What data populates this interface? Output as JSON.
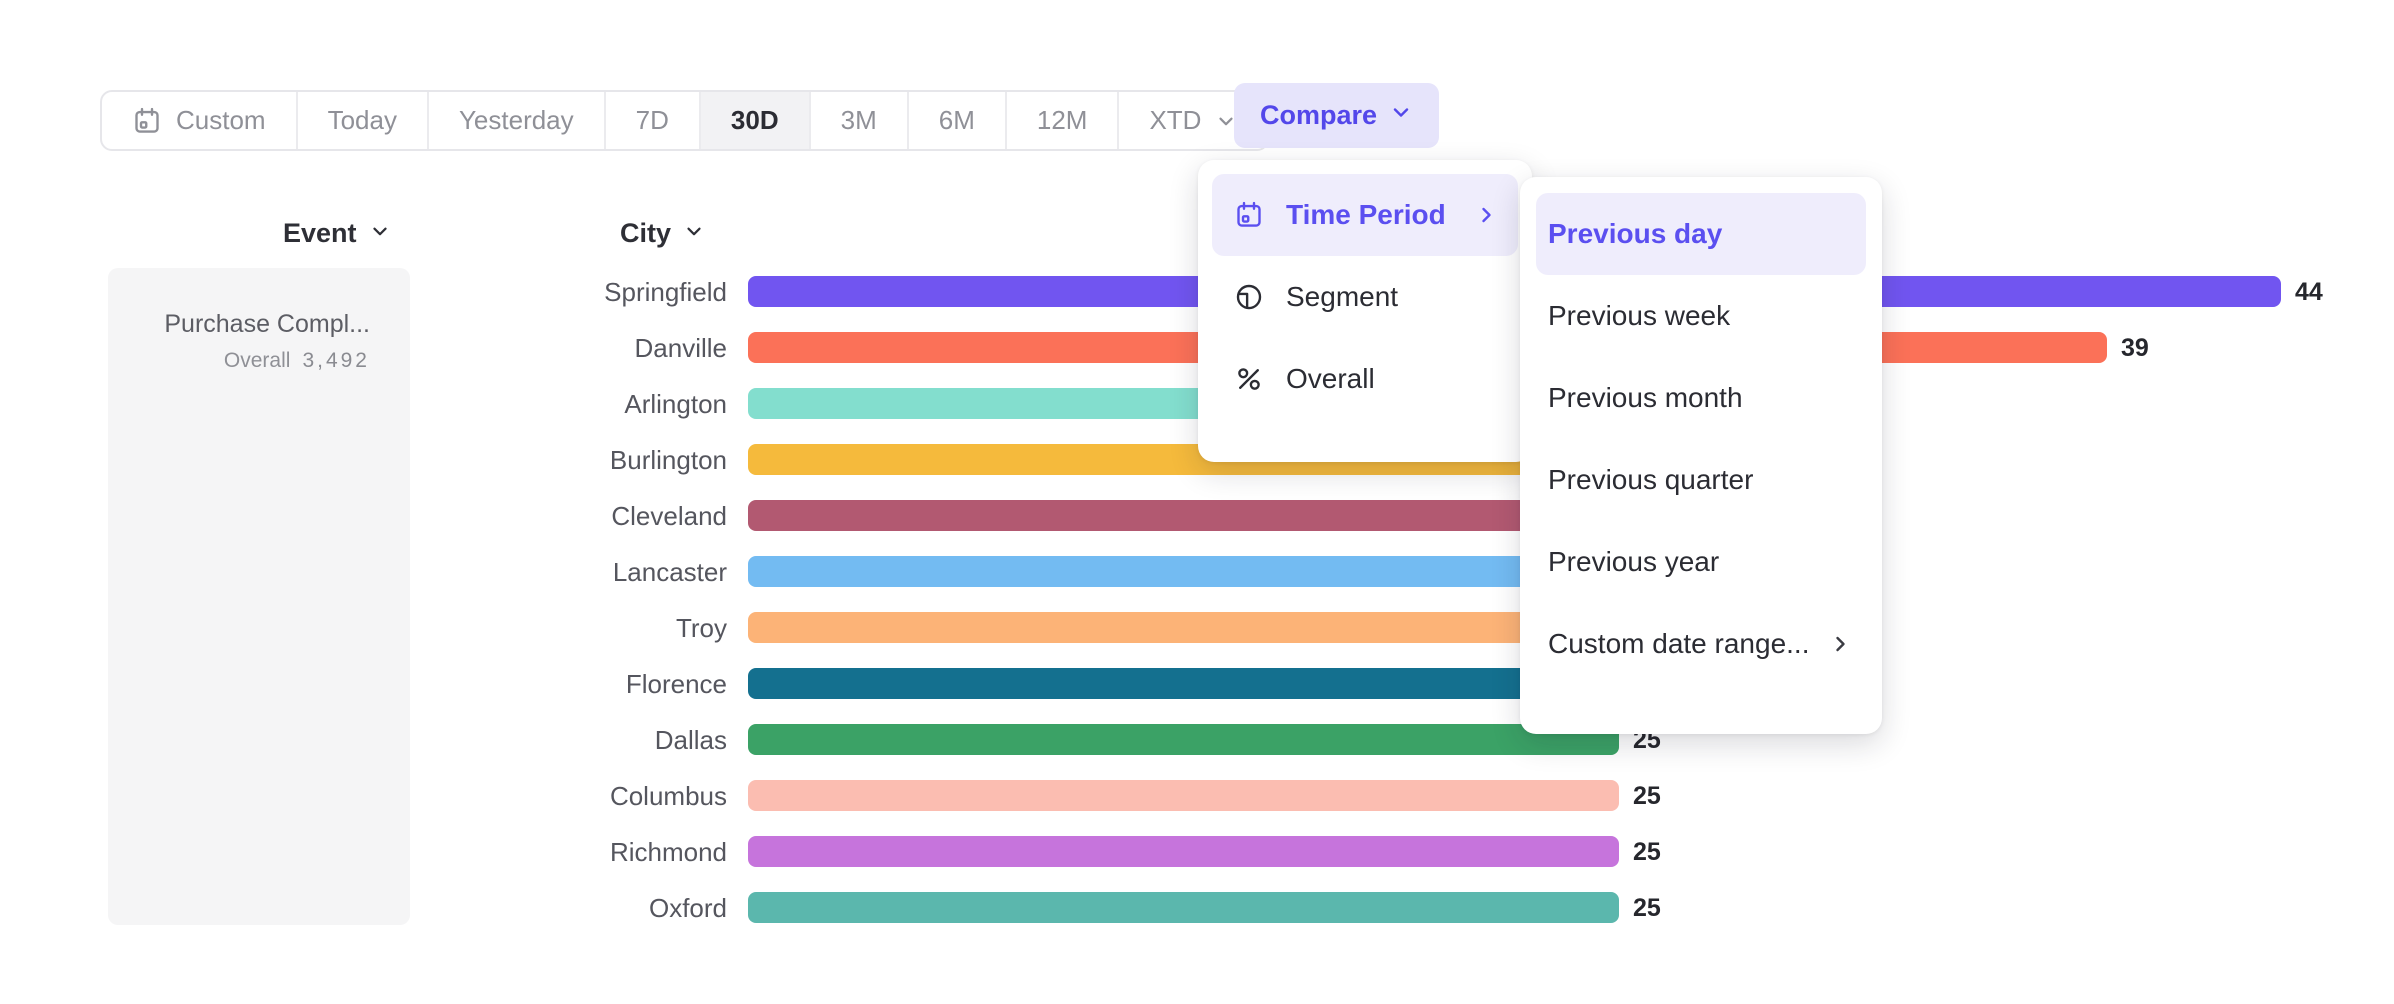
{
  "toolbar": {
    "items": [
      {
        "label": "Custom",
        "icon": "calendar",
        "selected": false,
        "chevron": false
      },
      {
        "label": "Today",
        "selected": false,
        "chevron": false
      },
      {
        "label": "Yesterday",
        "selected": false,
        "chevron": false
      },
      {
        "label": "7D",
        "selected": false,
        "chevron": false
      },
      {
        "label": "30D",
        "selected": true,
        "chevron": false
      },
      {
        "label": "3M",
        "selected": false,
        "chevron": false
      },
      {
        "label": "6M",
        "selected": false,
        "chevron": false
      },
      {
        "label": "12M",
        "selected": false,
        "chevron": false
      },
      {
        "label": "XTD",
        "selected": false,
        "chevron": true
      }
    ],
    "compare_label": "Compare"
  },
  "event_panel": {
    "header": "Event",
    "event_name": "Purchase Compl...",
    "overall_label": "Overall",
    "overall_value": "3,492"
  },
  "chart_data": {
    "type": "bar",
    "orientation": "horizontal",
    "group_header": "City",
    "categories": [
      "Springfield",
      "Danville",
      "Arlington",
      "Burlington",
      "Cleveland",
      "Lancaster",
      "Troy",
      "Florence",
      "Dallas",
      "Columbus",
      "Richmond",
      "Oxford"
    ],
    "rows": [
      {
        "city": "Springfield",
        "value": 44,
        "value_label": "44",
        "occluded": false,
        "value_estimate": 44,
        "color": "#7155F0"
      },
      {
        "city": "Danville",
        "value": 39,
        "value_label": "39",
        "occluded": false,
        "value_estimate": 39,
        "color": "#FB7158"
      },
      {
        "city": "Arlington",
        "value": null,
        "value_label": "",
        "occluded": true,
        "value_estimate": 31,
        "color": "#83DECE"
      },
      {
        "city": "Burlington",
        "value": null,
        "value_label": "",
        "occluded": true,
        "value_estimate": 30,
        "color": "#F5BA3C"
      },
      {
        "city": "Cleveland",
        "value": null,
        "value_label": "",
        "occluded": true,
        "value_estimate": 29,
        "color": "#B25971"
      },
      {
        "city": "Lancaster",
        "value": null,
        "value_label": "",
        "occluded": true,
        "value_estimate": 28,
        "color": "#73BBF2"
      },
      {
        "city": "Troy",
        "value": null,
        "value_label": "",
        "occluded": true,
        "value_estimate": 27,
        "color": "#FCB377"
      },
      {
        "city": "Florence",
        "value": null,
        "value_label": "",
        "occluded": true,
        "value_estimate": 26,
        "color": "#14708F"
      },
      {
        "city": "Dallas",
        "value": 25,
        "value_label": "25",
        "occluded": false,
        "value_estimate": 25,
        "color": "#3BA266"
      },
      {
        "city": "Columbus",
        "value": 25,
        "value_label": "25",
        "occluded": false,
        "value_estimate": 25,
        "color": "#FBBDB1"
      },
      {
        "city": "Richmond",
        "value": 25,
        "value_label": "25",
        "occluded": false,
        "value_estimate": 25,
        "color": "#C674DC"
      },
      {
        "city": "Oxford",
        "value": 25,
        "value_label": "25",
        "occluded": false,
        "value_estimate": 25,
        "color": "#5BB7AD"
      }
    ],
    "xlim": [
      0,
      47
    ],
    "grid": false,
    "legend": false,
    "note": "Bars for Arlington–Florence are partially hidden behind the open dropdown menus; their exact values are not visible."
  },
  "compare_menu": {
    "items": [
      {
        "label": "Time Period",
        "icon": "calendar",
        "selected": true,
        "submenu": true
      },
      {
        "label": "Segment",
        "icon": "segment",
        "selected": false,
        "submenu": false
      },
      {
        "label": "Overall",
        "icon": "percent",
        "selected": false,
        "submenu": false
      }
    ]
  },
  "time_period_submenu": {
    "items": [
      {
        "label": "Previous day",
        "selected": true,
        "submenu": false
      },
      {
        "label": "Previous week",
        "selected": false,
        "submenu": false
      },
      {
        "label": "Previous month",
        "selected": false,
        "submenu": false
      },
      {
        "label": "Previous quarter",
        "selected": false,
        "submenu": false
      },
      {
        "label": "Previous year",
        "selected": false,
        "submenu": false
      },
      {
        "label": "Custom date range...",
        "selected": false,
        "submenu": true
      }
    ]
  },
  "colors": {
    "accent": "#5347EA",
    "accent_menu_text": "#5B4FF0",
    "compare_button_bg": "#E6E4FB",
    "menu_highlight_bg": "#EFEDFC",
    "toolbar_text": "#8F9097",
    "toolbar_selected_bg": "#F2F2F4",
    "text_dark": "#2B2C33",
    "panel_bg": "#F5F5F6"
  }
}
